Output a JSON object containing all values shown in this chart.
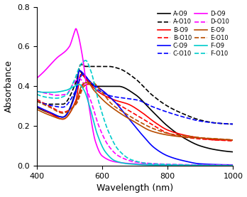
{
  "xlabel": "Wavelength (nm)",
  "ylabel": "Absorbance",
  "xlim": [
    400,
    1000
  ],
  "ylim": [
    0.0,
    0.8
  ],
  "xticks": [
    400,
    600,
    800,
    1000
  ],
  "yticks": [
    0.0,
    0.2,
    0.4,
    0.6,
    0.8
  ],
  "series": [
    {
      "label": "A-O9",
      "color": "#000000",
      "linestyle": "solid",
      "lw": 1.2,
      "points": [
        [
          400,
          0.295
        ],
        [
          440,
          0.265
        ],
        [
          480,
          0.245
        ],
        [
          520,
          0.38
        ],
        [
          530,
          0.48
        ],
        [
          540,
          0.46
        ],
        [
          560,
          0.42
        ],
        [
          580,
          0.4
        ],
        [
          620,
          0.4
        ],
        [
          650,
          0.4
        ],
        [
          700,
          0.36
        ],
        [
          750,
          0.28
        ],
        [
          800,
          0.2
        ],
        [
          850,
          0.14
        ],
        [
          900,
          0.1
        ],
        [
          950,
          0.08
        ],
        [
          1000,
          0.07
        ]
      ]
    },
    {
      "label": "A-O10",
      "color": "#000000",
      "linestyle": "dashed",
      "lw": 1.2,
      "points": [
        [
          400,
          0.325
        ],
        [
          440,
          0.31
        ],
        [
          480,
          0.31
        ],
        [
          520,
          0.42
        ],
        [
          535,
          0.51
        ],
        [
          550,
          0.5
        ],
        [
          580,
          0.5
        ],
        [
          620,
          0.5
        ],
        [
          650,
          0.49
        ],
        [
          700,
          0.44
        ],
        [
          750,
          0.36
        ],
        [
          800,
          0.3
        ],
        [
          850,
          0.26
        ],
        [
          900,
          0.23
        ],
        [
          950,
          0.215
        ],
        [
          1000,
          0.21
        ]
      ]
    },
    {
      "label": "B-O9",
      "color": "#ff0000",
      "linestyle": "solid",
      "lw": 1.2,
      "points": [
        [
          400,
          0.3
        ],
        [
          440,
          0.265
        ],
        [
          480,
          0.235
        ],
        [
          520,
          0.33
        ],
        [
          535,
          0.46
        ],
        [
          550,
          0.44
        ],
        [
          570,
          0.4
        ],
        [
          600,
          0.36
        ],
        [
          640,
          0.33
        ],
        [
          680,
          0.31
        ],
        [
          720,
          0.27
        ],
        [
          760,
          0.22
        ],
        [
          800,
          0.18
        ],
        [
          850,
          0.155
        ],
        [
          900,
          0.14
        ],
        [
          950,
          0.13
        ],
        [
          1000,
          0.13
        ]
      ]
    },
    {
      "label": "B-O10",
      "color": "#ff0000",
      "linestyle": "dashed",
      "lw": 1.2,
      "points": [
        [
          400,
          0.335
        ],
        [
          440,
          0.3
        ],
        [
          480,
          0.27
        ],
        [
          520,
          0.31
        ],
        [
          545,
          0.41
        ],
        [
          570,
          0.41
        ],
        [
          600,
          0.38
        ],
        [
          640,
          0.32
        ],
        [
          680,
          0.28
        ],
        [
          720,
          0.24
        ],
        [
          760,
          0.2
        ],
        [
          800,
          0.165
        ],
        [
          850,
          0.145
        ],
        [
          900,
          0.135
        ],
        [
          950,
          0.13
        ],
        [
          1000,
          0.125
        ]
      ]
    },
    {
      "label": "C-O9",
      "color": "#0000ff",
      "linestyle": "solid",
      "lw": 1.2,
      "points": [
        [
          400,
          0.3
        ],
        [
          440,
          0.27
        ],
        [
          480,
          0.245
        ],
        [
          520,
          0.37
        ],
        [
          530,
          0.48
        ],
        [
          545,
          0.46
        ],
        [
          565,
          0.42
        ],
        [
          600,
          0.38
        ],
        [
          640,
          0.32
        ],
        [
          680,
          0.24
        ],
        [
          720,
          0.16
        ],
        [
          760,
          0.09
        ],
        [
          800,
          0.05
        ],
        [
          850,
          0.025
        ],
        [
          900,
          0.01
        ],
        [
          1000,
          0.005
        ]
      ]
    },
    {
      "label": "C-O10",
      "color": "#0000ff",
      "linestyle": "dashed",
      "lw": 1.2,
      "points": [
        [
          400,
          0.325
        ],
        [
          440,
          0.305
        ],
        [
          480,
          0.295
        ],
        [
          520,
          0.38
        ],
        [
          540,
          0.46
        ],
        [
          560,
          0.43
        ],
        [
          590,
          0.38
        ],
        [
          630,
          0.35
        ],
        [
          670,
          0.34
        ],
        [
          710,
          0.33
        ],
        [
          750,
          0.3
        ],
        [
          800,
          0.27
        ],
        [
          850,
          0.245
        ],
        [
          900,
          0.225
        ],
        [
          950,
          0.215
        ],
        [
          1000,
          0.21
        ]
      ]
    },
    {
      "label": "D-O9",
      "color": "#ff00ff",
      "linestyle": "solid",
      "lw": 1.2,
      "points": [
        [
          400,
          0.44
        ],
        [
          420,
          0.47
        ],
        [
          460,
          0.54
        ],
        [
          500,
          0.6
        ],
        [
          515,
          0.67
        ],
        [
          520,
          0.69
        ],
        [
          525,
          0.67
        ],
        [
          540,
          0.55
        ],
        [
          560,
          0.3
        ],
        [
          580,
          0.12
        ],
        [
          600,
          0.05
        ],
        [
          640,
          0.02
        ],
        [
          700,
          0.01
        ],
        [
          800,
          0.005
        ],
        [
          1000,
          0.002
        ]
      ]
    },
    {
      "label": "D-O10",
      "color": "#ff00ff",
      "linestyle": "dashed",
      "lw": 1.2,
      "points": [
        [
          400,
          0.375
        ],
        [
          430,
          0.365
        ],
        [
          460,
          0.355
        ],
        [
          490,
          0.36
        ],
        [
          515,
          0.42
        ],
        [
          530,
          0.44
        ],
        [
          545,
          0.41
        ],
        [
          565,
          0.33
        ],
        [
          590,
          0.2
        ],
        [
          620,
          0.1
        ],
        [
          650,
          0.05
        ],
        [
          700,
          0.02
        ],
        [
          800,
          0.008
        ],
        [
          1000,
          0.003
        ]
      ]
    },
    {
      "label": "E-O9",
      "color": "#b84c00",
      "linestyle": "solid",
      "lw": 1.2,
      "points": [
        [
          400,
          0.285
        ],
        [
          440,
          0.255
        ],
        [
          480,
          0.235
        ],
        [
          520,
          0.32
        ],
        [
          540,
          0.41
        ],
        [
          555,
          0.42
        ],
        [
          575,
          0.38
        ],
        [
          610,
          0.32
        ],
        [
          650,
          0.27
        ],
        [
          700,
          0.22
        ],
        [
          750,
          0.175
        ],
        [
          800,
          0.155
        ],
        [
          850,
          0.145
        ],
        [
          900,
          0.14
        ],
        [
          950,
          0.135
        ],
        [
          1000,
          0.13
        ]
      ]
    },
    {
      "label": "E-O10",
      "color": "#b84c00",
      "linestyle": "dashed",
      "lw": 1.2,
      "points": [
        [
          400,
          0.325
        ],
        [
          440,
          0.295
        ],
        [
          480,
          0.265
        ],
        [
          520,
          0.31
        ],
        [
          545,
          0.4
        ],
        [
          570,
          0.42
        ],
        [
          595,
          0.38
        ],
        [
          630,
          0.31
        ],
        [
          670,
          0.265
        ],
        [
          710,
          0.225
        ],
        [
          760,
          0.185
        ],
        [
          810,
          0.16
        ],
        [
          860,
          0.15
        ],
        [
          910,
          0.14
        ],
        [
          960,
          0.135
        ],
        [
          1000,
          0.13
        ]
      ]
    },
    {
      "label": "F-O9",
      "color": "#00cccc",
      "linestyle": "solid",
      "lw": 1.2,
      "points": [
        [
          400,
          0.375
        ],
        [
          420,
          0.37
        ],
        [
          450,
          0.37
        ],
        [
          490,
          0.38
        ],
        [
          515,
          0.4
        ],
        [
          530,
          0.41
        ],
        [
          545,
          0.38
        ],
        [
          565,
          0.28
        ],
        [
          585,
          0.16
        ],
        [
          610,
          0.07
        ],
        [
          640,
          0.025
        ],
        [
          680,
          0.01
        ],
        [
          750,
          0.004
        ],
        [
          1000,
          0.001
        ]
      ]
    },
    {
      "label": "F-O10",
      "color": "#00cccc",
      "linestyle": "dashed",
      "lw": 1.2,
      "points": [
        [
          400,
          0.36
        ],
        [
          430,
          0.345
        ],
        [
          460,
          0.34
        ],
        [
          490,
          0.355
        ],
        [
          515,
          0.43
        ],
        [
          535,
          0.51
        ],
        [
          550,
          0.53
        ],
        [
          565,
          0.48
        ],
        [
          590,
          0.32
        ],
        [
          620,
          0.17
        ],
        [
          650,
          0.08
        ],
        [
          690,
          0.03
        ],
        [
          750,
          0.01
        ],
        [
          1000,
          0.002
        ]
      ]
    }
  ],
  "figsize": [
    3.48,
    2.77
  ],
  "dpi": 100
}
